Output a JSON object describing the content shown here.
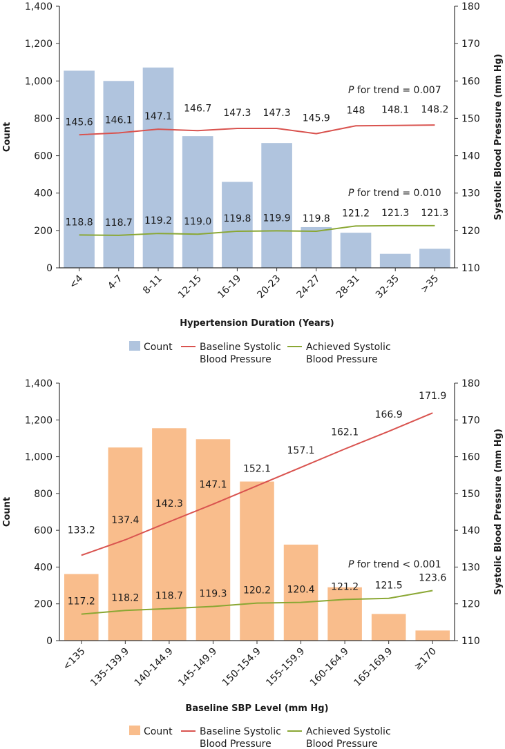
{
  "colors": {
    "count_bar_1": "#b0c4de",
    "count_bar_2": "#f9bd8c",
    "baseline_line": "#d9534f",
    "achieved_line": "#8aa733",
    "axis": "#333333"
  },
  "chart_data": [
    {
      "type": "bar",
      "xlabel": "Hypertension Duration (Years)",
      "ylabel": "Count",
      "ylabel_right": "Systolic Blood Pressure (mm Hg)",
      "ylim": [
        0,
        1400
      ],
      "ylim_right": [
        110,
        180
      ],
      "yticks": [
        "0",
        "200",
        "400",
        "600",
        "800",
        "1,000",
        "1,200",
        "1,400"
      ],
      "yticks_right": [
        "110",
        "120",
        "130",
        "140",
        "150",
        "160",
        "170",
        "180"
      ],
      "categories": [
        "<4",
        "4-7",
        "8-11",
        "12-15",
        "16-19",
        "20-23",
        "24-27",
        "28-31",
        "32-35",
        ">35"
      ],
      "series": [
        {
          "name": "Count",
          "kind": "bar",
          "axis": "left",
          "values": [
            1055,
            1000,
            1072,
            705,
            460,
            668,
            218,
            188,
            75,
            102
          ]
        },
        {
          "name": "Baseline Systolic Blood Pressure",
          "kind": "line",
          "axis": "right",
          "values": [
            145.6,
            146.1,
            147.1,
            146.7,
            147.3,
            147.3,
            145.9,
            148,
            148.1,
            148.2
          ],
          "labels": [
            "145.6",
            "146.1",
            "147.1",
            "146.7",
            "147.3",
            "147.3",
            "145.9",
            "148",
            "148.1",
            "148.2"
          ]
        },
        {
          "name": "Achieved Systolic Blood Pressure",
          "kind": "line",
          "axis": "right",
          "values": [
            118.8,
            118.7,
            119.2,
            119.0,
            119.8,
            119.9,
            119.8,
            121.2,
            121.3,
            121.3
          ],
          "labels": [
            "118.8",
            "118.7",
            "119.2",
            "119.0",
            "119.8",
            "119.9",
            "119.8",
            "121.2",
            "121.3",
            "121.3"
          ]
        }
      ],
      "annotations": [
        {
          "p": "P",
          "text": " for trend = 0.007",
          "near": "baseline"
        },
        {
          "p": "P",
          "text": " for trend = 0.010",
          "near": "achieved"
        }
      ],
      "legend": [
        {
          "kind": "bar",
          "lines": [
            "Count"
          ]
        },
        {
          "kind": "baseline",
          "lines": [
            "Baseline Systolic",
            "Blood Pressure"
          ]
        },
        {
          "kind": "achieved",
          "lines": [
            "Achieved Systolic",
            "Blood Pressure"
          ]
        }
      ]
    },
    {
      "type": "bar",
      "xlabel": "Baseline SBP Level (mm Hg)",
      "ylabel": "Count",
      "ylabel_right": "Systolic Blood Pressure (mm Hg)",
      "ylim": [
        0,
        1400
      ],
      "ylim_right": [
        110,
        180
      ],
      "yticks": [
        "0",
        "200",
        "400",
        "600",
        "800",
        "1,000",
        "1,200",
        "1,400"
      ],
      "yticks_right": [
        "110",
        "120",
        "130",
        "140",
        "150",
        "160",
        "170",
        "180"
      ],
      "categories": [
        "<135",
        "135-139.9",
        "140-144.9",
        "145-149.9",
        "150-154.9",
        "155-159.9",
        "160-164.9",
        "165-169.9",
        "≥170"
      ],
      "series": [
        {
          "name": "Count",
          "kind": "bar",
          "axis": "left",
          "values": [
            362,
            1050,
            1155,
            1095,
            865,
            522,
            290,
            145,
            55
          ]
        },
        {
          "name": "Baseline Systolic Blood Pressure",
          "kind": "line",
          "axis": "right",
          "values": [
            133.2,
            137.4,
            142.3,
            147.1,
            152.1,
            157.1,
            162.1,
            166.9,
            171.9
          ],
          "labels": [
            "133.2",
            "137.4",
            "142.3",
            "147.1",
            "152.1",
            "157.1",
            "162.1",
            "166.9",
            "171.9"
          ]
        },
        {
          "name": "Achieved Systolic Blood Pressure",
          "kind": "line",
          "axis": "right",
          "values": [
            117.2,
            118.2,
            118.7,
            119.3,
            120.2,
            120.4,
            121.2,
            121.5,
            123.6
          ],
          "labels": [
            "117.2",
            "118.2",
            "118.7",
            "119.3",
            "120.2",
            "120.4",
            "121.2",
            "121.5",
            "123.6"
          ]
        }
      ],
      "annotations": [
        {
          "p": "P",
          "text": " for trend < 0.001",
          "near": "achieved"
        }
      ],
      "legend": [
        {
          "kind": "bar",
          "lines": [
            "Count"
          ]
        },
        {
          "kind": "baseline",
          "lines": [
            "Baseline Systolic",
            "Blood Pressure"
          ]
        },
        {
          "kind": "achieved",
          "lines": [
            "Achieved Systolic",
            "Blood Pressure"
          ]
        }
      ]
    }
  ]
}
